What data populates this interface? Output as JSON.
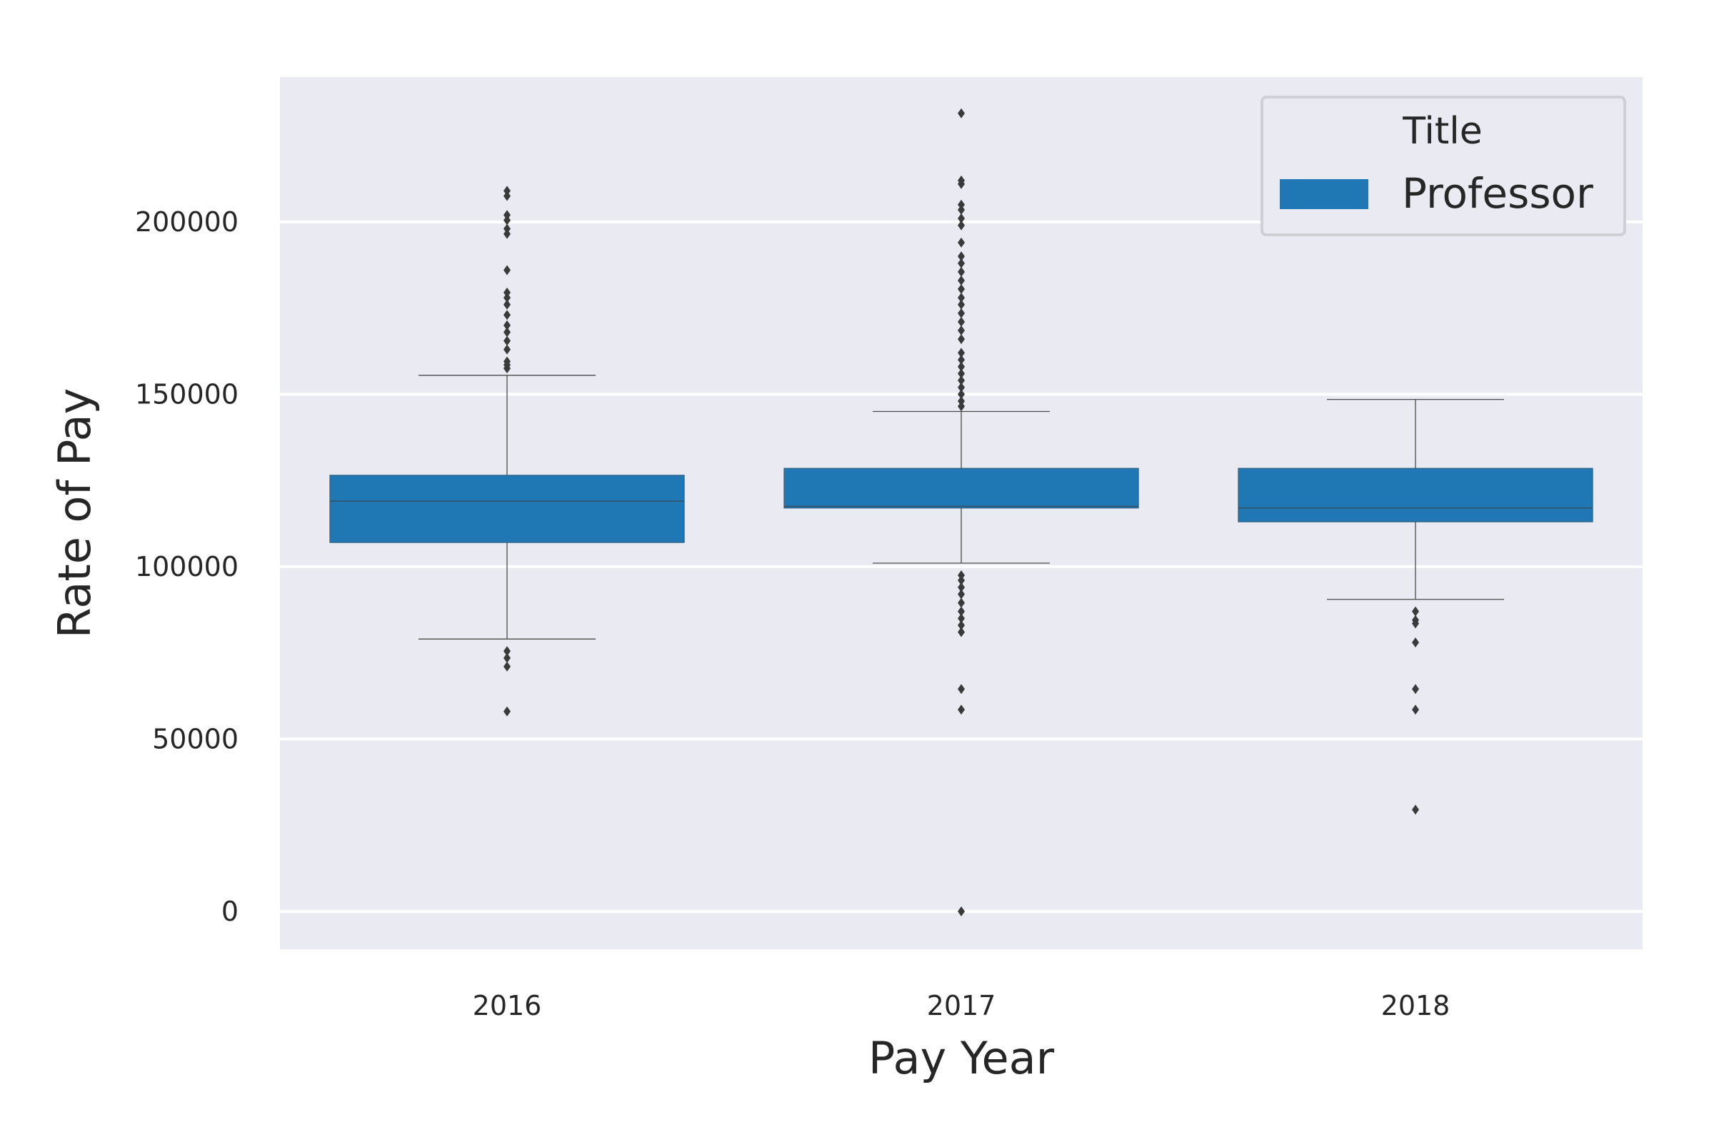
{
  "chart_data": {
    "type": "box",
    "xlabel": "Pay Year",
    "ylabel": "Rate of Pay",
    "categories": [
      "2016",
      "2017",
      "2018"
    ],
    "yticks": [
      "0",
      "50000",
      "100000",
      "150000",
      "200000"
    ],
    "ylim": [
      -11000,
      242000
    ],
    "grid": true,
    "legend": {
      "title": "Title",
      "placement": "top-right",
      "entries": [
        "Professor"
      ]
    },
    "colors": {
      "background": "#eaeaf2",
      "box": "#1f77b4",
      "grid": "#ffffff",
      "whisker": "#4a4a4a",
      "outlier": "#3a3a3a"
    },
    "series": [
      {
        "name": "Professor",
        "boxes": [
          {
            "category": "2016",
            "q1": 107000,
            "median": 119000,
            "q3": 126500,
            "whisker_low": 79000,
            "whisker_high": 155500,
            "outliers": [
              58000,
              71000,
              73500,
              75500,
              157500,
              158500,
              159500,
              163000,
              165500,
              168000,
              170000,
              173000,
              176000,
              178000,
              179500,
              186000,
              196500,
              198000,
              200500,
              202000,
              207500,
              209000
            ]
          },
          {
            "category": "2017",
            "q1": 117000,
            "median": 117500,
            "q3": 128500,
            "whisker_low": 101000,
            "whisker_high": 145000,
            "outliers": [
              0,
              58500,
              64500,
              81000,
              83000,
              85000,
              87000,
              89500,
              92000,
              94000,
              96000,
              97500,
              146500,
              148000,
              150000,
              152000,
              154000,
              156000,
              158000,
              160000,
              162000,
              166000,
              168500,
              171000,
              173500,
              176000,
              178000,
              180500,
              183000,
              185500,
              188000,
              190000,
              194000,
              199000,
              201000,
              203500,
              205000,
              211000,
              212000,
              231500
            ]
          },
          {
            "category": "2018",
            "q1": 113000,
            "median": 117000,
            "q3": 128500,
            "whisker_low": 90500,
            "whisker_high": 148500,
            "outliers": [
              29500,
              58500,
              64500,
              78000,
              83500,
              84500,
              87000
            ]
          }
        ]
      }
    ]
  }
}
